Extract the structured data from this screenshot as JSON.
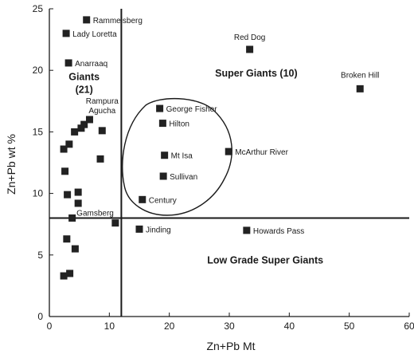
{
  "chart_data": {
    "type": "scatter",
    "xlabel": "Zn+Pb Mt",
    "ylabel": "Zn+Pb wt %",
    "xlim": [
      0,
      60
    ],
    "ylim": [
      0,
      25
    ],
    "xticks": [
      0,
      10,
      20,
      30,
      40,
      50,
      60
    ],
    "yticks": [
      0,
      5,
      10,
      15,
      20,
      25
    ],
    "grid": false,
    "threshold_x": 12,
    "threshold_y": 8,
    "marker_color": "#222222",
    "regions": [
      {
        "label": "Giants",
        "sublabel": "(21)",
        "x": 5.8,
        "y": 19.2
      },
      {
        "label": "Super Giants (10)",
        "x": 34.5,
        "y": 19.5
      },
      {
        "label": "Low Grade Super Giants",
        "x": 36,
        "y": 4.3
      }
    ],
    "outline_note": "closed curve enclosing George Fisher, Hilton, Mt Isa, Sullivan, Century, McArthur River",
    "points": [
      {
        "x": 6.2,
        "y": 24.1,
        "label": "Rammelsberg"
      },
      {
        "x": 2.8,
        "y": 23.0,
        "label": "Lady Loretta"
      },
      {
        "x": 3.2,
        "y": 20.6,
        "label": "Anarraaq"
      },
      {
        "x": 33.4,
        "y": 21.7,
        "label": "Red Dog"
      },
      {
        "x": 51.8,
        "y": 18.5,
        "label": "Broken Hill"
      },
      {
        "x": 8.8,
        "y": 15.1,
        "label": "Rampura Agucha"
      },
      {
        "x": 18.4,
        "y": 16.9,
        "label": "George Fisher"
      },
      {
        "x": 18.9,
        "y": 15.7,
        "label": "Hilton"
      },
      {
        "x": 19.2,
        "y": 13.1,
        "label": "Mt Isa"
      },
      {
        "x": 29.9,
        "y": 13.4,
        "label": "McArthur River"
      },
      {
        "x": 19.0,
        "y": 11.4,
        "label": "Sullivan"
      },
      {
        "x": 15.5,
        "y": 9.5,
        "label": "Century"
      },
      {
        "x": 11.0,
        "y": 7.6,
        "label": "Gamsberg"
      },
      {
        "x": 15.0,
        "y": 7.1,
        "label": "Jinding"
      },
      {
        "x": 32.9,
        "y": 7.0,
        "label": "Howards Pass"
      },
      {
        "x": 6.7,
        "y": 16.0,
        "label": ""
      },
      {
        "x": 5.8,
        "y": 15.6,
        "label": ""
      },
      {
        "x": 5.3,
        "y": 15.3,
        "label": ""
      },
      {
        "x": 4.2,
        "y": 15.0,
        "label": ""
      },
      {
        "x": 2.4,
        "y": 13.6,
        "label": ""
      },
      {
        "x": 3.3,
        "y": 14.0,
        "label": ""
      },
      {
        "x": 8.5,
        "y": 12.8,
        "label": ""
      },
      {
        "x": 2.6,
        "y": 11.8,
        "label": ""
      },
      {
        "x": 4.8,
        "y": 10.1,
        "label": ""
      },
      {
        "x": 3.0,
        "y": 9.9,
        "label": ""
      },
      {
        "x": 4.8,
        "y": 9.2,
        "label": ""
      },
      {
        "x": 3.8,
        "y": 8.0,
        "label": ""
      },
      {
        "x": 2.9,
        "y": 6.3,
        "label": ""
      },
      {
        "x": 4.3,
        "y": 5.5,
        "label": ""
      },
      {
        "x": 3.4,
        "y": 3.5,
        "label": ""
      },
      {
        "x": 2.4,
        "y": 3.3,
        "label": ""
      }
    ]
  }
}
